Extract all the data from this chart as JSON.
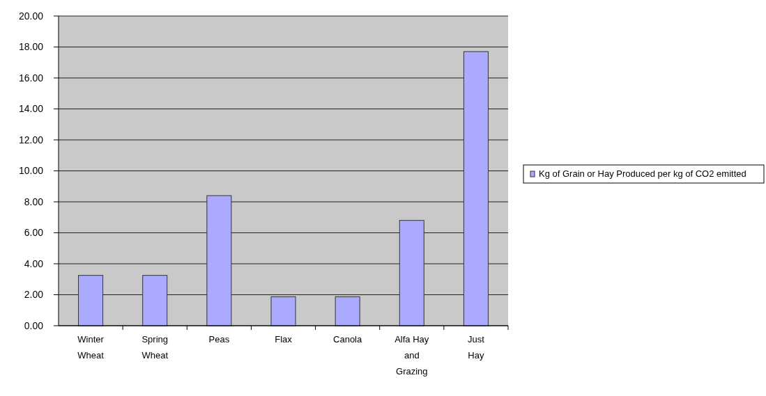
{
  "chart_data": {
    "type": "bar",
    "categories": [
      "Winter Wheat",
      "Spring Wheat",
      "Peas",
      "Flax",
      "Canola",
      "Alfa Hay and Grazing",
      "Just Hay"
    ],
    "series": [
      {
        "name": "Kg of Grain or Hay Produced per kg of CO2 emitted",
        "color": "#aaaaff",
        "values": [
          3.25,
          3.25,
          8.4,
          1.87,
          1.87,
          6.8,
          17.7
        ]
      }
    ],
    "ylim": [
      0,
      20
    ],
    "yticks": [
      {
        "value": 0,
        "label": "0.00"
      },
      {
        "value": 2,
        "label": "2.00"
      },
      {
        "value": 4,
        "label": "4.00"
      },
      {
        "value": 6,
        "label": "6.00"
      },
      {
        "value": 8,
        "label": "8.00"
      },
      {
        "value": 10,
        "label": "10.00"
      },
      {
        "value": 12,
        "label": "12.00"
      },
      {
        "value": 14,
        "label": "14.00"
      },
      {
        "value": 16,
        "label": "16.00"
      },
      {
        "value": 18,
        "label": "18.00"
      },
      {
        "value": 20,
        "label": "20.00"
      }
    ],
    "grid": "y",
    "legend": "right"
  }
}
